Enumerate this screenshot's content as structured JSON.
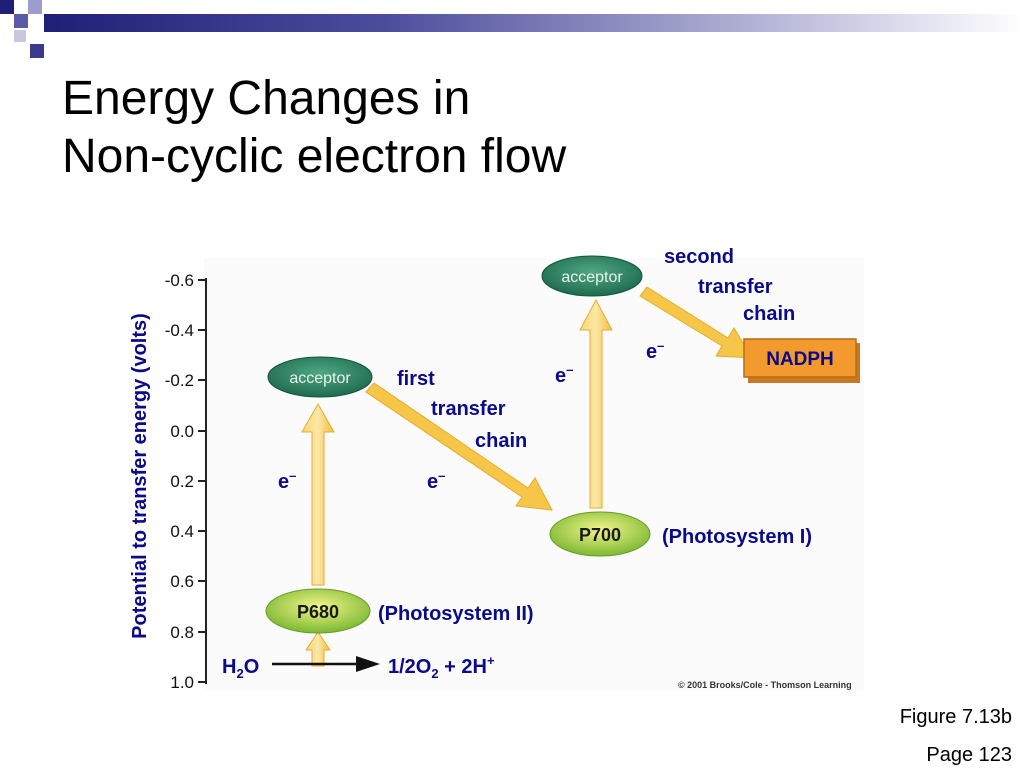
{
  "slide": {
    "title_line1": "Energy Changes in",
    "title_line2": "Non-cyclic electron flow",
    "figure_ref": "Figure 7.13b",
    "page_ref": "Page 123"
  },
  "diagram": {
    "y_axis_label": "Potential to transfer energy (volts)",
    "y_ticks": [
      "-0.6",
      "-0.4",
      "-0.2",
      "0.0",
      "0.2",
      "0.4",
      "0.6",
      "0.8",
      "1.0"
    ],
    "nodes": {
      "acceptor_1": "acceptor",
      "acceptor_2": "acceptor",
      "p680": "P680",
      "p700": "P700",
      "nadph": "NADPH"
    },
    "labels": {
      "photosystem_ii": "(Photosystem II)",
      "photosystem_i": "(Photosystem I)",
      "first_chain_1": "first",
      "first_chain_2": "transfer",
      "first_chain_3": "chain",
      "second_chain_1": "second",
      "second_chain_2": "transfer",
      "second_chain_3": "chain",
      "electron": "e",
      "electron_sign": "–",
      "water_H": "H",
      "water_sub": "2",
      "water_O": "O",
      "products_a": "1/2O",
      "products_sub": "2",
      "products_b": " + 2H",
      "products_sup": "+"
    },
    "copyright": "© 2001 Brooks/Cole - Thomson Learning"
  },
  "colors": {
    "arrow": "#f6c649",
    "label": "#0a0a8a",
    "acceptor": "#1f7a5a",
    "photosystem": "#9cc93a",
    "nadph": "#f29a2e"
  }
}
